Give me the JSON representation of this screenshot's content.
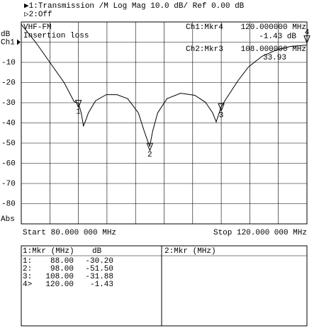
{
  "header": {
    "line1": "▶1:Transmission /M Log Mag 10.0 dB/ Ref 0.00 dB",
    "line2": "▷2:Off"
  },
  "chart_data": {
    "type": "line",
    "y_label": "dB",
    "ref_label": "Ch1",
    "abs_label": "Abs",
    "annotations": {
      "name": "VHF-FM",
      "desc": "Insertion loss",
      "mkr1_head": "Ch1:Mkr4",
      "mkr1_freq": "120.000000 MHz",
      "mkr1_val": "-1.43 dB",
      "mkr2_head": "Ch2:Mkr3",
      "mkr2_freq": "108.000000 MHz",
      "mkr2_val": "33.93"
    },
    "start_label": "Start 80.000 000 MHz",
    "stop_label": "Stop 120.000 000 MHz",
    "xlim": [
      80,
      120
    ],
    "ylim": [
      -90,
      10
    ],
    "xticks": [
      {
        "value": 84,
        "label": null
      },
      {
        "value": 88,
        "label": null
      },
      {
        "value": 92,
        "label": null
      },
      {
        "value": 96,
        "label": null
      },
      {
        "value": 100,
        "label": null
      },
      {
        "value": 104,
        "label": null
      },
      {
        "value": 108,
        "label": null
      },
      {
        "value": 112,
        "label": null
      },
      {
        "value": 116,
        "label": null
      }
    ],
    "yticks": [
      {
        "value": 10,
        "label": null
      },
      {
        "value": 0,
        "label": null
      },
      -10,
      -20,
      -30,
      -40,
      -50,
      -60,
      -70,
      -80,
      {
        "value": -90,
        "label": null
      }
    ],
    "grid": true,
    "series": [
      {
        "name": "Ch1",
        "color": "#000000",
        "x": [
          80.0,
          82.0,
          84.0,
          86.0,
          87.4,
          88.0,
          88.4,
          88.7,
          89.1,
          89.4,
          90.4,
          91.9,
          93.4,
          94.9,
          96.4,
          97.2,
          97.7,
          98.0,
          98.4,
          99.1,
          100.4,
          102.3,
          104.3,
          105.8,
          106.8,
          107.3,
          108.0,
          108.8,
          110.3,
          111.8,
          113.7,
          115.7,
          117.7,
          120.0
        ],
        "values": [
          8.8,
          0,
          -10,
          -20,
          -29.5,
          -30.2,
          -35,
          -41.5,
          -38,
          -35,
          -29,
          -26,
          -26,
          -28,
          -35,
          -43.9,
          -49,
          -51.5,
          -44,
          -35,
          -28,
          -25.3,
          -26.3,
          -29.8,
          -35,
          -39.5,
          -31.9,
          -27.4,
          -19.3,
          -12.3,
          -7,
          -3.9,
          -2.1,
          -1.43
        ]
      }
    ],
    "markers": [
      {
        "label": "1",
        "x": 88,
        "value": -30.2
      },
      {
        "label": "2",
        "x": 98,
        "value": -51.5
      },
      {
        "label": "3",
        "x": 108,
        "value": -31.88
      },
      {
        "label": "4",
        "x": 120,
        "value": -1.43
      }
    ]
  },
  "table": {
    "left_header": [
      "1:Mkr (MHz)",
      "dB"
    ],
    "rows": [
      [
        "1:",
        "88.00",
        "-30.20"
      ],
      [
        "2:",
        "98.00",
        "-51.50"
      ],
      [
        "3:",
        "108.00",
        "-31.88"
      ],
      [
        "4>",
        "120.00",
        "-1.43"
      ]
    ],
    "right_header": "2:Mkr (MHz)"
  }
}
